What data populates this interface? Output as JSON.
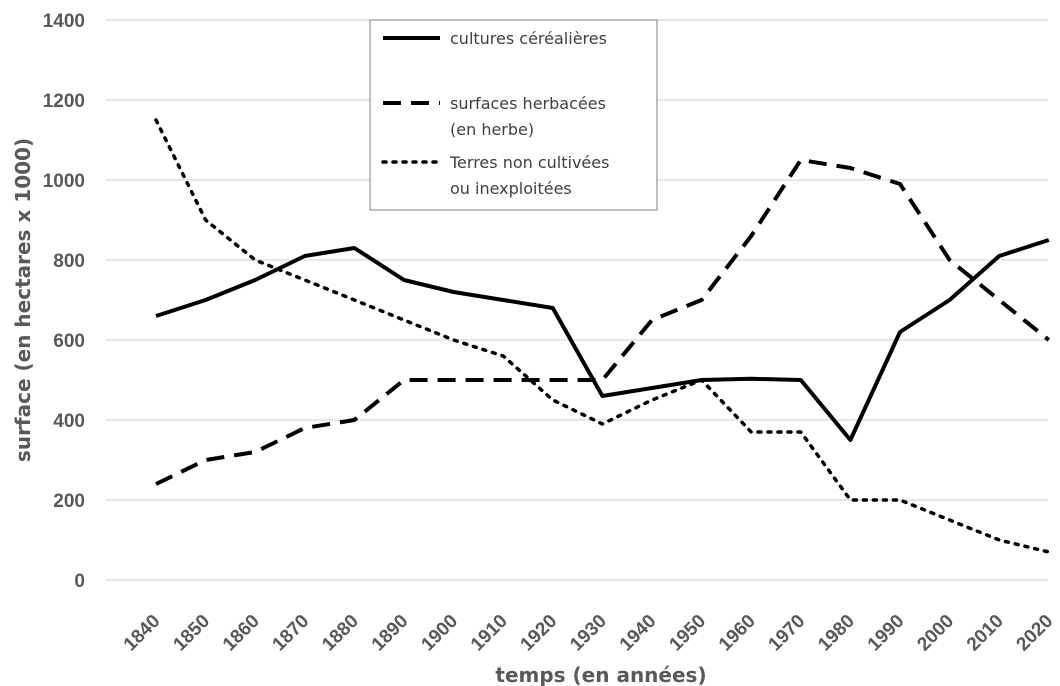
{
  "chart_data": {
    "type": "line",
    "title": "",
    "xlabel": "temps (en années)",
    "ylabel": "surface (en hectares x 1000)",
    "ylim": [
      0,
      1400
    ],
    "yticks": [
      0,
      200,
      400,
      600,
      800,
      1000,
      1200,
      1400
    ],
    "grid": true,
    "legend_position": "top-center",
    "x": [
      "1840",
      "1850",
      "1860",
      "1870",
      "1880",
      "1890",
      "1900",
      "1910",
      "1920",
      "1930",
      "1940",
      "1950",
      "1960",
      "1970",
      "1980",
      "1990",
      "2000",
      "2010",
      "2020"
    ],
    "series": [
      {
        "name": "cultures céréalières",
        "legend_lines": [
          "cultures céréalières"
        ],
        "style": "solid",
        "values": [
          660,
          700,
          750,
          810,
          830,
          750,
          720,
          700,
          680,
          460,
          480,
          500,
          503,
          500,
          350,
          620,
          700,
          810,
          850
        ]
      },
      {
        "name": "surfaces herbacées (en herbe)",
        "legend_lines": [
          "surfaces herbacées",
          "(en herbe)"
        ],
        "style": "dashed",
        "values": [
          240,
          300,
          320,
          380,
          400,
          500,
          500,
          500,
          500,
          500,
          650,
          700,
          860,
          1050,
          1030,
          990,
          800,
          700,
          600
        ]
      },
      {
        "name": "Terres non cultivées ou inexploitées",
        "legend_lines": [
          "Terres non cultivées",
          "ou inexploitées"
        ],
        "style": "dotted",
        "values": [
          1150,
          900,
          800,
          750,
          700,
          650,
          600,
          560,
          450,
          390,
          450,
          500,
          370,
          370,
          200,
          200,
          150,
          100,
          70
        ]
      }
    ],
    "colors": {
      "lines": "#000000",
      "ticks": "#595959",
      "grid": "#d0d0d0"
    }
  }
}
